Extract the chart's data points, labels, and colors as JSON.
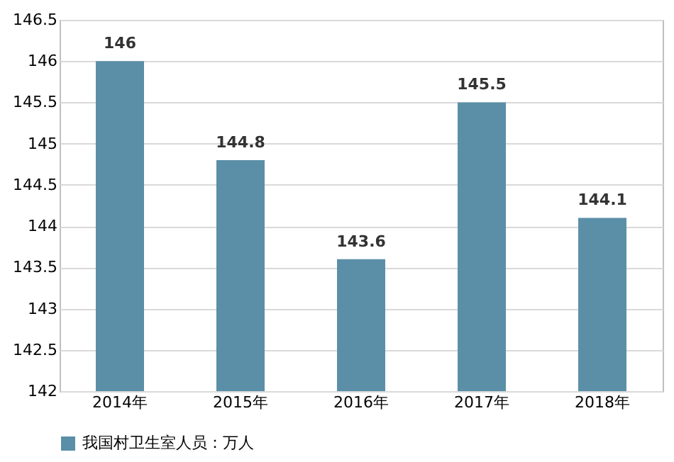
{
  "chart_data": {
    "type": "bar",
    "categories": [
      "2014年",
      "2015年",
      "2016年",
      "2017年",
      "2018年"
    ],
    "series": [
      {
        "name": "我国村卫生室人员：万人",
        "color": "#5b8fa8",
        "values": [
          146,
          144.8,
          143.6,
          145.5,
          144.1
        ]
      }
    ],
    "ylim": [
      142,
      146.5
    ],
    "yticks": [
      142,
      142.5,
      143,
      143.5,
      144,
      144.5,
      145,
      145.5,
      146,
      146.5
    ],
    "grid": "y",
    "legend": "bottom",
    "data_labels": true
  }
}
